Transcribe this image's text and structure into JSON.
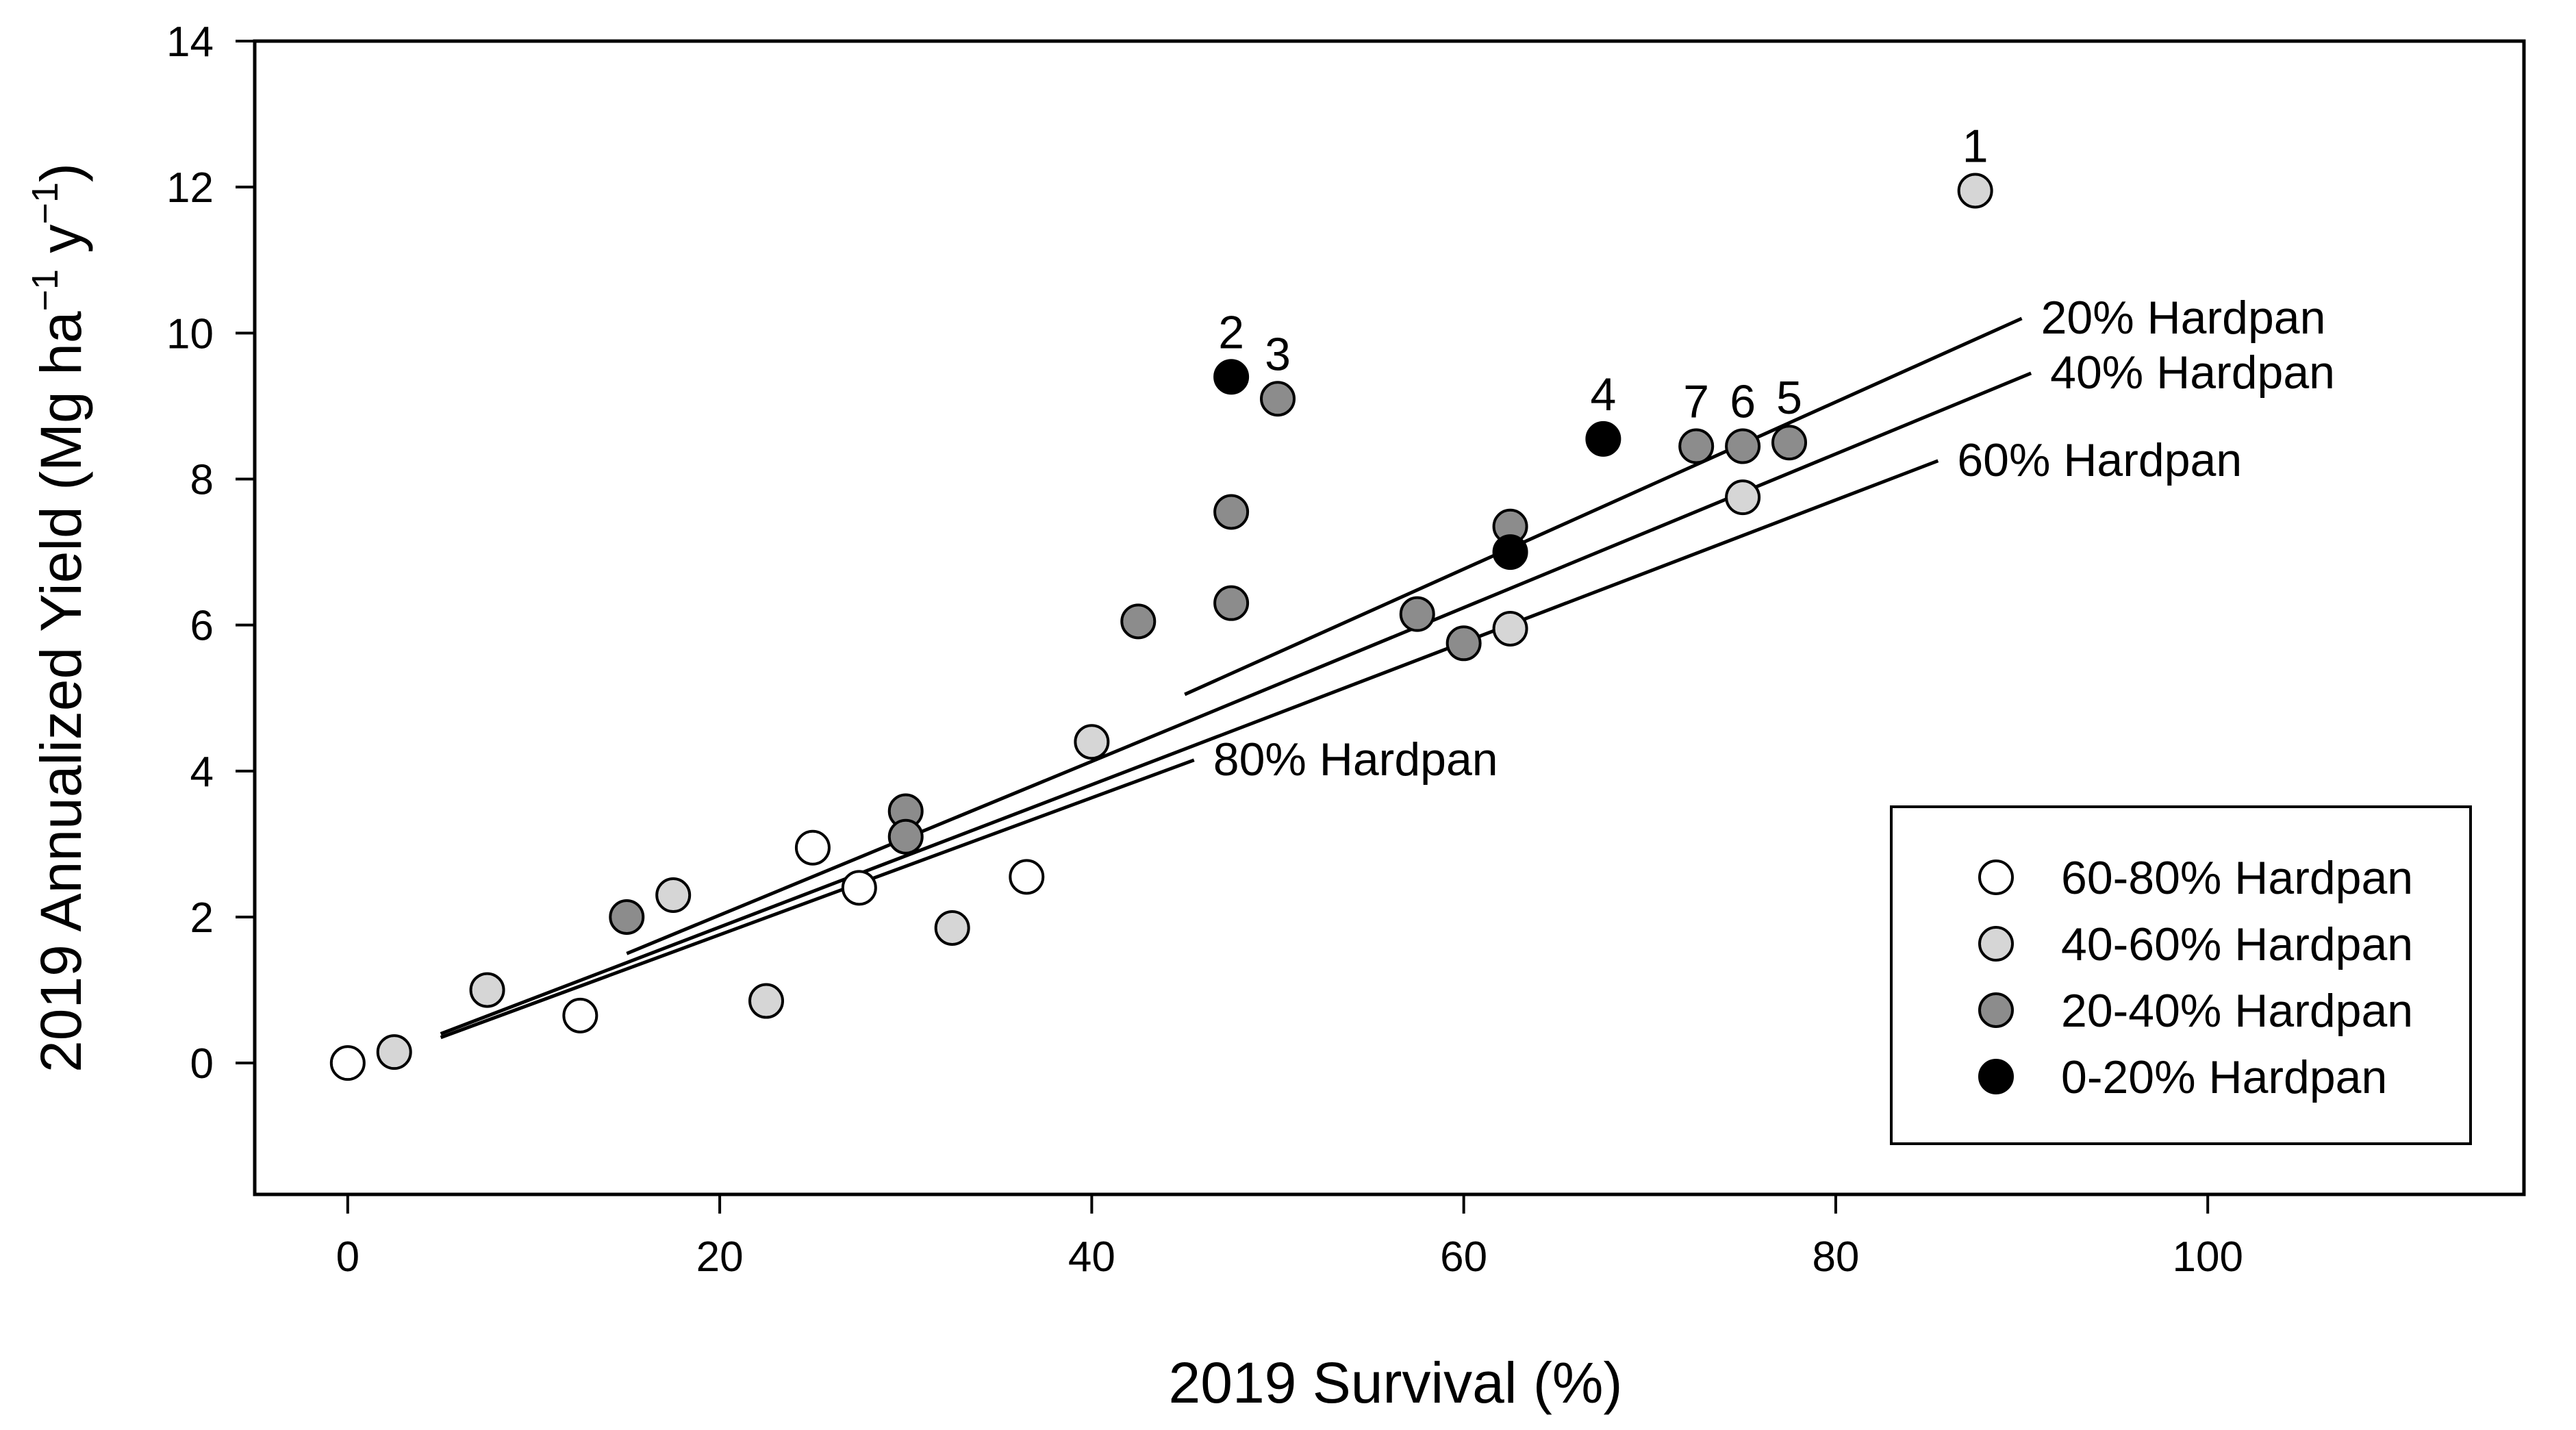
{
  "chart_data": {
    "type": "scatter",
    "title": "",
    "xlabel": "2019 Survival (%)",
    "ylabel_main": "2019 Annualized Yield (Mg ha",
    "ylabel_sup1": "−1",
    "ylabel_mid": " y",
    "ylabel_sup2": "−1",
    "ylabel_end": ")",
    "xlim": [
      -5,
      117
    ],
    "ylim": [
      -1.8,
      14
    ],
    "xticks": [
      0,
      20,
      40,
      60,
      80,
      100
    ],
    "yticks": [
      0,
      2,
      4,
      6,
      8,
      10,
      12,
      14
    ],
    "grid": false,
    "colors": {
      "60-80": "#ffffff",
      "40-60": "#d6d6d6",
      "20-40": "#8c8c8c",
      "0-20": "#000000"
    },
    "legend": {
      "position": "bottom-right",
      "entries": [
        {
          "key": "60-80",
          "label": "60-80% Hardpan"
        },
        {
          "key": "40-60",
          "label": "40-60% Hardpan"
        },
        {
          "key": "20-40",
          "label": "20-40% Hardpan"
        },
        {
          "key": "0-20",
          "label": "0-20% Hardpan"
        }
      ]
    },
    "points": [
      {
        "x": 0,
        "y": 0,
        "group": "60-80"
      },
      {
        "x": 2.5,
        "y": 0.15,
        "group": "40-60"
      },
      {
        "x": 7.5,
        "y": 1.0,
        "group": "40-60"
      },
      {
        "x": 12.5,
        "y": 0.65,
        "group": "60-80"
      },
      {
        "x": 15,
        "y": 2.0,
        "group": "20-40"
      },
      {
        "x": 17.5,
        "y": 2.3,
        "group": "40-60"
      },
      {
        "x": 22.5,
        "y": 0.85,
        "group": "40-60"
      },
      {
        "x": 25,
        "y": 2.95,
        "group": "60-80"
      },
      {
        "x": 27.5,
        "y": 2.4,
        "group": "60-80"
      },
      {
        "x": 30,
        "y": 3.45,
        "group": "20-40"
      },
      {
        "x": 30,
        "y": 3.1,
        "group": "20-40"
      },
      {
        "x": 32.5,
        "y": 1.85,
        "group": "40-60"
      },
      {
        "x": 36.5,
        "y": 2.55,
        "group": "60-80"
      },
      {
        "x": 40,
        "y": 4.4,
        "group": "40-60"
      },
      {
        "x": 42.5,
        "y": 6.05,
        "group": "20-40"
      },
      {
        "x": 47.5,
        "y": 9.4,
        "group": "0-20",
        "label": "2"
      },
      {
        "x": 47.5,
        "y": 7.55,
        "group": "20-40"
      },
      {
        "x": 47.5,
        "y": 6.3,
        "group": "20-40"
      },
      {
        "x": 50,
        "y": 9.1,
        "group": "20-40",
        "label": "3"
      },
      {
        "x": 57.5,
        "y": 6.15,
        "group": "20-40"
      },
      {
        "x": 60,
        "y": 5.75,
        "group": "20-40"
      },
      {
        "x": 62.5,
        "y": 7.35,
        "group": "20-40"
      },
      {
        "x": 62.5,
        "y": 7.0,
        "group": "0-20"
      },
      {
        "x": 62.5,
        "y": 5.95,
        "group": "40-60"
      },
      {
        "x": 67.5,
        "y": 8.55,
        "group": "0-20",
        "label": "4"
      },
      {
        "x": 72.5,
        "y": 8.45,
        "group": "20-40",
        "label": "7"
      },
      {
        "x": 75,
        "y": 8.45,
        "group": "20-40",
        "label": "6"
      },
      {
        "x": 75,
        "y": 7.75,
        "group": "40-60"
      },
      {
        "x": 77.5,
        "y": 8.5,
        "group": "20-40",
        "label": "5"
      },
      {
        "x": 87.5,
        "y": 11.95,
        "group": "40-60",
        "label": "1"
      }
    ],
    "lines": [
      {
        "label": "20% Hardpan",
        "x1": 45,
        "y1": 5.05,
        "x2": 90,
        "y2": 10.2
      },
      {
        "label": "40% Hardpan",
        "x1": 15,
        "y1": 1.5,
        "x2": 90.5,
        "y2": 9.45
      },
      {
        "label": "60% Hardpan",
        "x1": 5,
        "y1": 0.4,
        "x2": 85.5,
        "y2": 8.25
      },
      {
        "label": "80% Hardpan",
        "x1": 5,
        "y1": 0.35,
        "x2": 45.5,
        "y2": 4.15
      }
    ]
  }
}
